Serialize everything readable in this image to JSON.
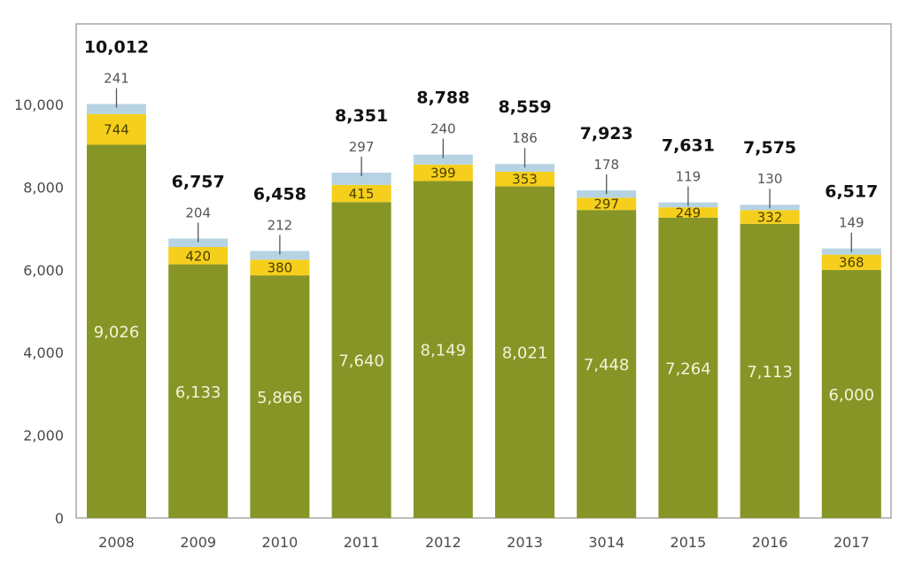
{
  "chart_data": {
    "type": "bar",
    "stacked": true,
    "title": "",
    "xlabel": "",
    "ylabel": "",
    "ylim": [
      0,
      12000
    ],
    "yticks": [
      0,
      2000,
      4000,
      6000,
      8000,
      10000
    ],
    "ytick_labels": [
      "0",
      "2,000",
      "4,000",
      "6,000",
      "8,000",
      "10,000"
    ],
    "grid": false,
    "legend": "none",
    "categories": [
      "2008",
      "2009",
      "2010",
      "2011",
      "2012",
      "2013",
      "3014",
      "2015",
      "2016",
      "2017"
    ],
    "series": [
      {
        "name": "base",
        "color": "#869526",
        "values": [
          9026,
          6133,
          5866,
          7640,
          8149,
          8021,
          7448,
          7264,
          7113,
          6000
        ],
        "labels": [
          "9,026",
          "6,133",
          "5,866",
          "7,640",
          "8,149",
          "8,021",
          "7,448",
          "7,264",
          "7,113",
          "6,000"
        ]
      },
      {
        "name": "middle",
        "color": "#f5cf1c",
        "values": [
          744,
          420,
          380,
          415,
          399,
          353,
          297,
          249,
          332,
          368
        ],
        "labels": [
          "744",
          "420",
          "380",
          "415",
          "399",
          "353",
          "297",
          "249",
          "332",
          "368"
        ]
      },
      {
        "name": "top",
        "color": "#b5d3e3",
        "values": [
          241,
          204,
          212,
          297,
          240,
          186,
          178,
          119,
          130,
          149
        ],
        "labels": [
          "241",
          "204",
          "212",
          "297",
          "240",
          "186",
          "178",
          "119",
          "130",
          "149"
        ]
      }
    ],
    "totals": [
      10012,
      6757,
      6458,
      8351,
      8788,
      8559,
      7923,
      7631,
      7575,
      6517
    ],
    "total_labels": [
      "10,012",
      "6,757",
      "6,458",
      "8,351",
      "8,788",
      "8,559",
      "7,923",
      "7,631",
      "7,575",
      "6,517"
    ],
    "frame_color": "#9a9a9a"
  }
}
